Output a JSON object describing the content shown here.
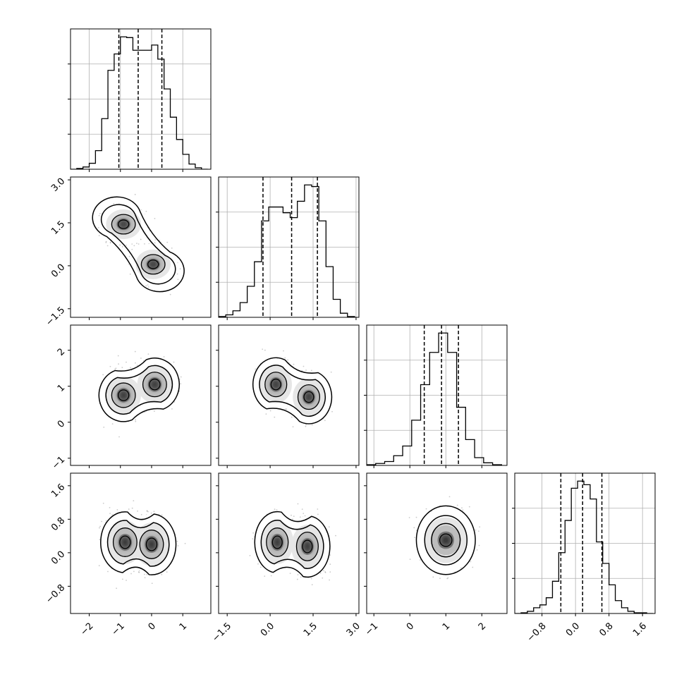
{
  "chart_data": {
    "type": "corner",
    "variables": 4,
    "axes": [
      {
        "range": [
          -2.6,
          1.9
        ],
        "ticks": [
          -2,
          -1,
          0,
          1
        ],
        "tick_labels": [
          "−2",
          "−1",
          "0",
          "1"
        ]
      },
      {
        "range": [
          -1.8,
          3.1
        ],
        "ticks": [
          -1.5,
          0.0,
          1.5,
          3.0
        ],
        "tick_labels": [
          "−1.5",
          "0.0",
          "1.5",
          "3.0"
        ]
      },
      {
        "range": [
          -1.2,
          2.7
        ],
        "ticks": [
          -1,
          0,
          1,
          2
        ],
        "tick_labels": [
          "−1",
          "0",
          "1",
          "2"
        ]
      },
      {
        "range": [
          -1.45,
          1.9
        ],
        "ticks": [
          -0.8,
          0.0,
          0.8,
          1.6
        ],
        "tick_labels": [
          "−0.8",
          "0.0",
          "0.8",
          "1.6"
        ]
      }
    ],
    "diagonal": [
      {
        "type": "histogram",
        "quantile_lines": [
          -1.05,
          -0.43,
          0.33
        ],
        "bin_edges": [
          -2.6,
          -2.4,
          -2.2,
          -2.0,
          -1.8,
          -1.6,
          -1.4,
          -1.2,
          -1.0,
          -0.8,
          -0.6,
          -0.4,
          -0.2,
          0.0,
          0.2,
          0.4,
          0.6,
          0.8,
          1.0,
          1.2,
          1.4,
          1.6,
          1.8
        ],
        "counts": [
          0,
          1,
          3,
          8,
          25,
          68,
          133,
          155,
          178,
          177,
          160,
          160,
          160,
          167,
          148,
          108,
          70,
          40,
          20,
          7,
          2,
          0
        ]
      },
      {
        "type": "histogram",
        "quantile_lines": [
          -0.25,
          0.75,
          1.65
        ],
        "bin_edges": [
          -1.8,
          -1.55,
          -1.3,
          -1.05,
          -0.8,
          -0.55,
          -0.3,
          -0.05,
          0.2,
          0.45,
          0.7,
          0.95,
          1.2,
          1.45,
          1.7,
          1.95,
          2.2,
          2.45,
          2.7,
          2.95
        ],
        "counts": [
          1,
          3,
          8,
          18,
          38,
          68,
          118,
          135,
          135,
          128,
          122,
          142,
          162,
          160,
          118,
          62,
          22,
          5,
          1
        ]
      },
      {
        "type": "histogram",
        "quantile_lines": [
          0.4,
          0.88,
          1.35
        ],
        "bin_edges": [
          -1.2,
          -0.95,
          -0.7,
          -0.45,
          -0.2,
          0.05,
          0.3,
          0.55,
          0.8,
          1.05,
          1.3,
          1.55,
          1.8,
          2.05,
          2.3,
          2.55
        ],
        "counts": [
          1,
          3,
          6,
          15,
          30,
          70,
          125,
          175,
          205,
          175,
          90,
          40,
          12,
          4,
          1
        ]
      },
      {
        "type": "histogram",
        "quantile_lines": [
          -0.35,
          0.17,
          0.63
        ],
        "bin_edges": [
          -1.45,
          -1.3,
          -1.15,
          -1.0,
          -0.85,
          -0.7,
          -0.55,
          -0.4,
          -0.25,
          -0.1,
          0.05,
          0.2,
          0.35,
          0.5,
          0.65,
          0.8,
          0.95,
          1.1,
          1.25,
          1.4,
          1.55,
          1.7,
          1.85
        ],
        "counts": [
          0,
          1,
          3,
          8,
          12,
          22,
          45,
          85,
          130,
          175,
          185,
          180,
          160,
          100,
          70,
          40,
          18,
          8,
          3,
          1,
          1,
          0
        ]
      }
    ],
    "pairs": [
      {
        "row": 1,
        "col": 0,
        "type": "2d-density",
        "modes": [
          [
            -0.9,
            1.45
          ],
          [
            0.05,
            0.05
          ]
        ]
      },
      {
        "row": 2,
        "col": 0,
        "type": "2d-density",
        "modes": [
          [
            -0.9,
            0.75
          ],
          [
            0.1,
            1.05
          ]
        ]
      },
      {
        "row": 2,
        "col": 1,
        "type": "2d-density",
        "modes": [
          [
            0.2,
            1.05
          ],
          [
            1.35,
            0.7
          ]
        ]
      },
      {
        "row": 3,
        "col": 0,
        "type": "2d-density",
        "modes": [
          [
            -0.85,
            0.25
          ],
          [
            0.0,
            0.2
          ]
        ]
      },
      {
        "row": 3,
        "col": 1,
        "type": "2d-density",
        "modes": [
          [
            0.25,
            0.25
          ],
          [
            1.3,
            0.15
          ]
        ]
      },
      {
        "row": 3,
        "col": 2,
        "type": "2d-density",
        "modes": [
          [
            1.0,
            0.3
          ]
        ]
      }
    ]
  }
}
